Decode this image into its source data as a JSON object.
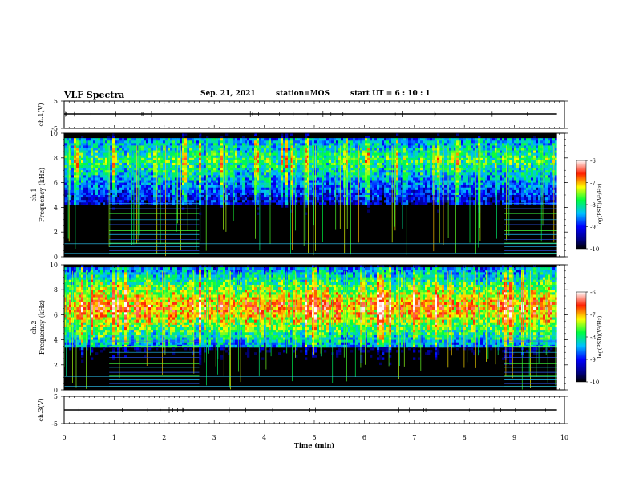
{
  "header": {
    "title": "VLF Spectra",
    "date": "Sep. 21, 2021",
    "station": "station=MOS",
    "start": "start  UT =   6 : 10 : 1"
  },
  "chart_data": [
    {
      "type": "line",
      "name": "ch1-waveform",
      "ylabel": "ch.1(V)",
      "ylim": [
        -5,
        5
      ],
      "yticks": [
        "5",
        "-5"
      ],
      "xlim": [
        0,
        10
      ]
    },
    {
      "type": "heatmap",
      "name": "ch1-spectrogram",
      "ylabel": "ch.1\nFrequency (kHz)",
      "ylim": [
        0,
        10
      ],
      "yticks": [
        "0",
        "2",
        "4",
        "6",
        "8",
        "10"
      ],
      "xlim": [
        0,
        10
      ],
      "colorbar": {
        "ticks": [
          "-6",
          "-7",
          "-8",
          "-9",
          "-10"
        ],
        "range": [
          -10,
          -6
        ],
        "label": "log(PSD)(V²/Hz)"
      }
    },
    {
      "type": "heatmap",
      "name": "ch2-spectrogram",
      "ylabel": "ch.2\nFrequency (kHz)",
      "ylim": [
        0,
        10
      ],
      "yticks": [
        "0",
        "2",
        "4",
        "6",
        "8",
        "10"
      ],
      "xlim": [
        0,
        10
      ],
      "colorbar": {
        "ticks": [
          "-6",
          "-7",
          "-8",
          "-9",
          "-10"
        ],
        "range": [
          -10,
          -6
        ],
        "label": "log(PSD)(V²/Hz)"
      }
    },
    {
      "type": "line",
      "name": "ch3-waveform",
      "ylabel": "ch.3(V)",
      "ylim": [
        -5,
        5
      ],
      "yticks": [
        "5",
        "-5"
      ],
      "xlim": [
        0,
        10
      ]
    }
  ],
  "xaxis": {
    "label": "Time (min)",
    "ticks": [
      "0",
      "1",
      "2",
      "3",
      "4",
      "5",
      "6",
      "7",
      "8",
      "9",
      "10"
    ]
  }
}
